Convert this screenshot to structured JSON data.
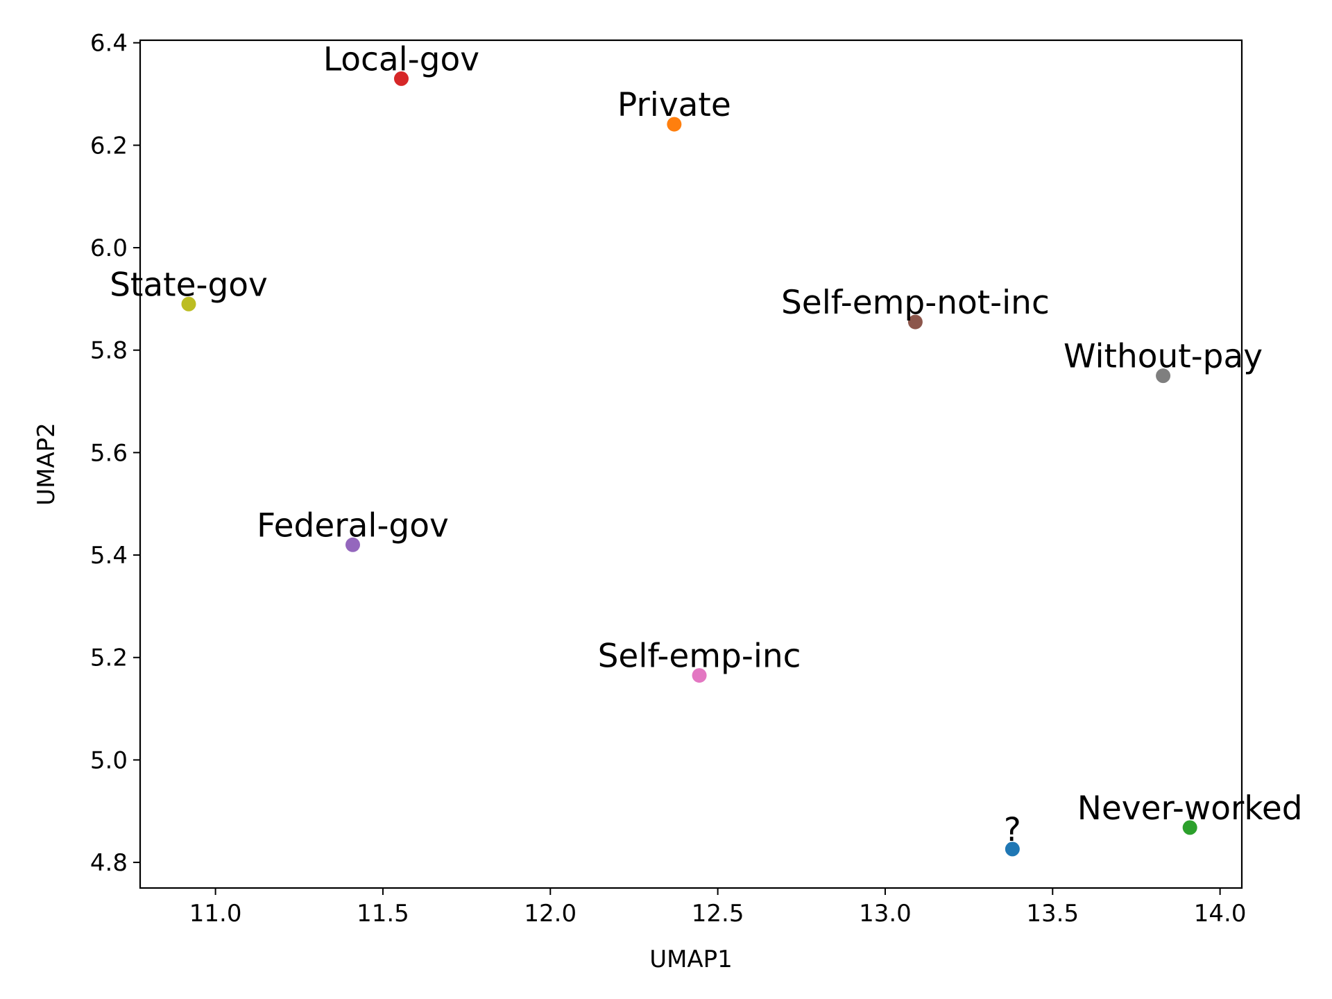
{
  "chart_data": {
    "type": "scatter",
    "title": "",
    "xlabel": "UMAP1",
    "ylabel": "UMAP2",
    "xlim": [
      10.775,
      14.065
    ],
    "ylim": [
      4.75,
      6.405
    ],
    "xticks": [
      11.0,
      11.5,
      12.0,
      12.5,
      13.0,
      13.5,
      14.0
    ],
    "xtick_labels": [
      "11.0",
      "11.5",
      "12.0",
      "12.5",
      "13.0",
      "13.5",
      "14.0"
    ],
    "yticks": [
      4.8,
      5.0,
      5.2,
      5.4,
      5.6,
      5.8,
      6.0,
      6.2,
      6.4
    ],
    "ytick_labels": [
      "4.8",
      "5.0",
      "5.2",
      "5.4",
      "5.6",
      "5.8",
      "6.0",
      "6.2",
      "6.4"
    ],
    "grid": false,
    "points": [
      {
        "label": "?",
        "x": 13.38,
        "y": 4.826,
        "color": "#1f77b4"
      },
      {
        "label": "Private",
        "x": 12.37,
        "y": 6.241,
        "color": "#ff7f0e"
      },
      {
        "label": "Never-worked",
        "x": 13.91,
        "y": 4.868,
        "color": "#2ca02c"
      },
      {
        "label": "Local-gov",
        "x": 11.555,
        "y": 6.33,
        "color": "#d62728"
      },
      {
        "label": "Federal-gov",
        "x": 11.41,
        "y": 5.42,
        "color": "#9467bd"
      },
      {
        "label": "Self-emp-not-inc",
        "x": 13.09,
        "y": 5.855,
        "color": "#8c564b"
      },
      {
        "label": "Self-emp-inc",
        "x": 12.445,
        "y": 5.165,
        "color": "#e377c2"
      },
      {
        "label": "Without-pay",
        "x": 13.83,
        "y": 5.75,
        "color": "#7f7f7f"
      },
      {
        "label": "State-gov",
        "x": 10.92,
        "y": 5.89,
        "color": "#bcbd22"
      }
    ]
  }
}
